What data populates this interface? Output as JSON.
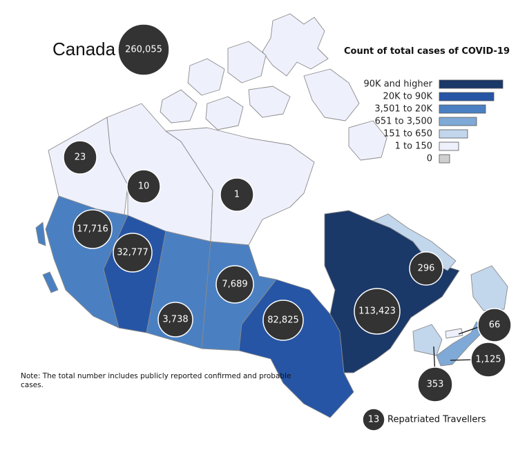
{
  "map": {
    "country_label": "Canada",
    "country_total": "260,055",
    "legend": {
      "title": "Count of total cases of COVID-19",
      "items": [
        {
          "label": "90K and higher",
          "color": "#1a3868"
        },
        {
          "label": "20K to 90K",
          "color": "#2655a5"
        },
        {
          "label": "3,501 to 20K",
          "color": "#4a80c2"
        },
        {
          "label": "651 to 3,500",
          "color": "#7fa9d6"
        },
        {
          "label": "151 to 650",
          "color": "#c2d6ec"
        },
        {
          "label": "1 to 150",
          "color": "#eef0fc"
        },
        {
          "label": "0",
          "color": "#cfcfcf"
        }
      ]
    },
    "regions": [
      {
        "name": "Yukon",
        "cases": "23",
        "bin": "1 to 150"
      },
      {
        "name": "Northwest Territories",
        "cases": "10",
        "bin": "1 to 150"
      },
      {
        "name": "Nunavut",
        "cases": "1",
        "bin": "1 to 150"
      },
      {
        "name": "British Columbia",
        "cases": "17,716",
        "bin": "3,501 to 20K"
      },
      {
        "name": "Alberta",
        "cases": "32,777",
        "bin": "20K to 90K"
      },
      {
        "name": "Saskatchewan",
        "cases": "3,738",
        "bin": "3,501 to 20K"
      },
      {
        "name": "Manitoba",
        "cases": "7,689",
        "bin": "3,501 to 20K"
      },
      {
        "name": "Ontario",
        "cases": "82,825",
        "bin": "20K to 90K"
      },
      {
        "name": "Quebec",
        "cases": "113,423",
        "bin": "90K and higher"
      },
      {
        "name": "Newfoundland and Labrador",
        "cases": "296",
        "bin": "151 to 650"
      },
      {
        "name": "Prince Edward Island",
        "cases": "66",
        "bin": "1 to 150"
      },
      {
        "name": "Nova Scotia",
        "cases": "1,125",
        "bin": "651 to 3,500"
      },
      {
        "name": "New Brunswick",
        "cases": "353",
        "bin": "151 to 650"
      }
    ],
    "repatriated": {
      "count": "13",
      "label": "Repatriated Travellers"
    },
    "note": "Note: The total number includes publicly reported confirmed and probable cases."
  }
}
